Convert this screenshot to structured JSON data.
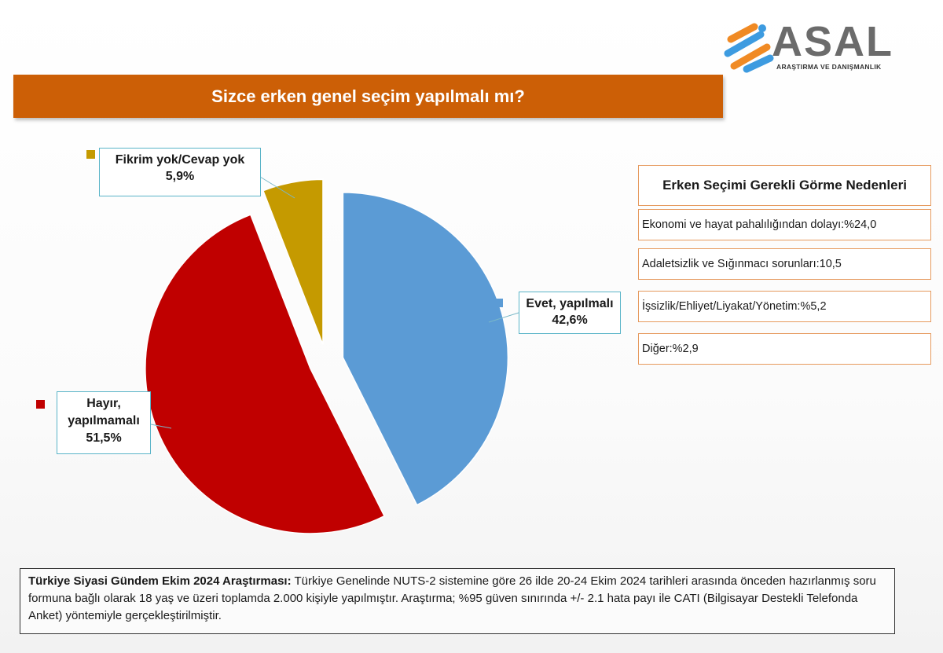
{
  "logo": {
    "name": "ASAL",
    "subtitle": "ARAŞTIRMA VE DANIŞMANLIK"
  },
  "title": "Sizce erken genel seçim yapılmalı mı?",
  "chart_data": {
    "type": "pie",
    "slices": [
      {
        "label": "Evet, yapılmalı",
        "value": 42.6,
        "display": "42,6%",
        "color": "#5b9bd5"
      },
      {
        "label": "Hayır, yapılmamalı",
        "value": 51.5,
        "display": "51,5%",
        "color": "#c00000"
      },
      {
        "label": "Fikrim yok/Cevap yok",
        "value": 5.9,
        "display": "5,9%",
        "color": "#c59a00"
      }
    ],
    "exploded": true
  },
  "labels": {
    "evet": {
      "line1": "Evet, yapılmalı",
      "value": "42,6%"
    },
    "hayir": {
      "line1": "Hayır,",
      "line2": "yapılmamalı",
      "value": "51,5%"
    },
    "fikrim": {
      "line1": "Fikrim yok/Cevap yok",
      "value": "5,9%"
    }
  },
  "reasons": {
    "title": "Erken Seçimi Gerekli Görme Nedenleri",
    "items": [
      "Ekonomi  ve hayat pahalılığından dolayı:%24,0",
      "Adaletsizlik ve Sığınmacı sorunları:10,5",
      "İşsizlik/Ehliyet/Liyakat/Yönetim:%5,2",
      "Diğer:%2,9"
    ]
  },
  "footer": {
    "bold": "Türkiye Siyasi Gündem Ekim 2024 Araştırması:",
    "text": " Türkiye Genelinde  NUTS-2 sistemine göre 26 ilde 20-24 Ekim 2024 tarihleri arasında önceden  hazırlanmış soru formuna bağlı olarak  18 yaş ve üzeri toplamda 2.000 kişiyle yapılmıştır. Araştırma; %95 güven sınırında +/-  2.1 hata payı ile CATI (Bilgisayar Destekli Telefonda  Anket) yöntemiyle gerçekleştirilmiştir."
  }
}
